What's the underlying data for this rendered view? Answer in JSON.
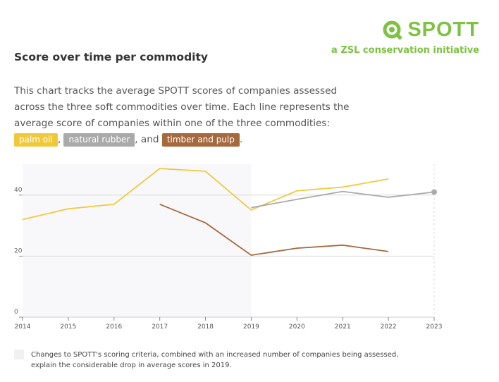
{
  "logo": {
    "name": "SPOTT",
    "tagline": "a ZSL conservation initiative",
    "color": "#7dc242"
  },
  "title": "Score over time per commodity",
  "description": {
    "text1": "This chart tracks the average SPOTT scores of companies assessed across the three soft commodities over time. Each line represents the average score of companies within one of the three commodities: ",
    "sep1": ", ",
    "sep2": ", and ",
    "end": "."
  },
  "legend": [
    {
      "label": "palm oil",
      "color": "#f0c93a"
    },
    {
      "label": "natural rubber",
      "color": "#aaaaaa"
    },
    {
      "label": "timber and pulp",
      "color": "#a5693d"
    }
  ],
  "note": "Changes to SPOTT's scoring criteria, combined with an increased number of companies being assessed, explain the considerable drop in average scores in 2019.",
  "chart_data": {
    "type": "line",
    "x": [
      2014,
      2015,
      2016,
      2017,
      2018,
      2019,
      2020,
      2021,
      2022,
      2023
    ],
    "ylim": [
      0,
      50
    ],
    "yticks": [
      0,
      20,
      40
    ],
    "grid": true,
    "shaded_range": [
      2014,
      2019
    ],
    "series": [
      {
        "name": "palm oil",
        "color": "#f0c93a",
        "values": [
          32.0,
          35.5,
          37.0,
          48.7,
          47.8,
          35.1,
          41.4,
          42.6,
          45.3,
          null
        ]
      },
      {
        "name": "natural rubber",
        "color": "#aaaaaa",
        "values": [
          null,
          null,
          null,
          null,
          null,
          35.9,
          38.6,
          41.2,
          39.3,
          41.0
        ]
      },
      {
        "name": "timber and pulp",
        "color": "#a5693d",
        "values": [
          null,
          null,
          null,
          37.0,
          30.9,
          20.3,
          22.6,
          23.6,
          21.5,
          null
        ]
      }
    ]
  }
}
